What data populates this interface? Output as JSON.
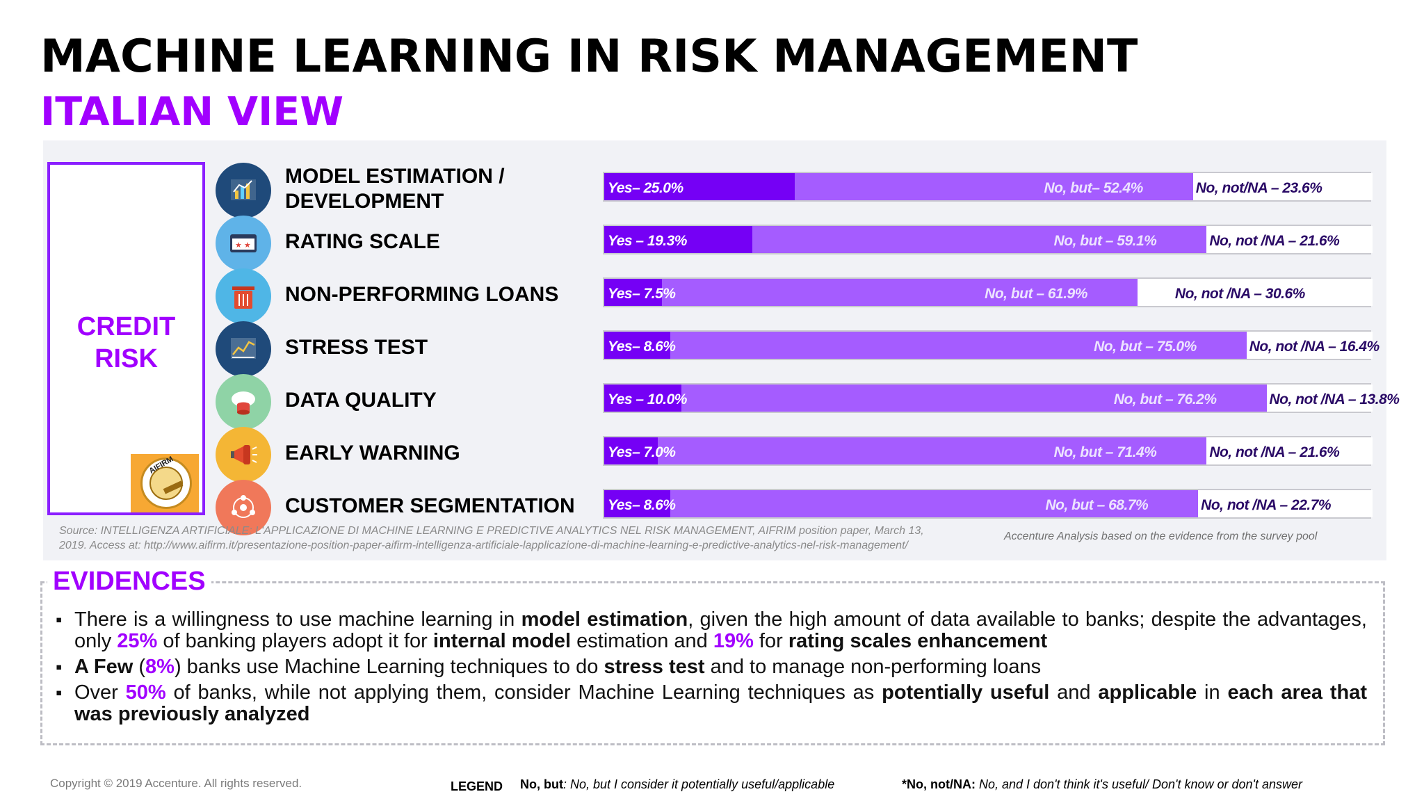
{
  "title": "MACHINE LEARNING IN RISK MANAGEMENT",
  "subtitle": "ITALIAN VIEW",
  "category_label": [
    "CREDIT",
    "RISK"
  ],
  "logo_text": "AIFIRM",
  "colors": {
    "accent": "#a100ff",
    "yes": "#7500f5",
    "no_but": "#a55cff",
    "no_not": "#ffffff"
  },
  "chart_data": {
    "type": "bar",
    "orientation": "horizontal",
    "stacked": true,
    "categories": [
      "MODEL ESTIMATION / DEVELOPMENT",
      "RATING SCALE",
      "NON-PERFORMING LOANS",
      "STRESS TEST",
      "DATA QUALITY",
      "EARLY WARNING",
      "CUSTOMER SEGMENTATION"
    ],
    "icons": [
      "chart-board-icon",
      "rating-stars-icon",
      "trash-bin-icon",
      "stress-graph-icon",
      "database-cloud-icon",
      "megaphone-icon",
      "network-user-icon"
    ],
    "icon_colors": [
      "#1f4a7a",
      "#5fb3e8",
      "#4fb6e6",
      "#1f4a7a",
      "#8fd3a6",
      "#f4b635",
      "#f0785a"
    ],
    "series": [
      {
        "name": "Yes",
        "values": [
          25.0,
          19.3,
          7.5,
          8.6,
          10.0,
          7.0,
          8.6
        ],
        "labels": [
          "Yes– 25.0%",
          "Yes  –  19.3%",
          "Yes– 7.5%",
          "Yes– 8.6%",
          "Yes – 10.0%",
          "Yes– 7.0%",
          "Yes– 8.6%"
        ]
      },
      {
        "name": "No, but",
        "values": [
          52.4,
          59.1,
          61.9,
          75.0,
          76.2,
          71.4,
          68.7
        ],
        "labels": [
          "No, but– 52.4%",
          "No, but – 59.1%",
          "No, but – 61.9%",
          "No, but – 75.0%",
          "No, but – 76.2%",
          "No, but – 71.4%",
          "No, but – 68.7%"
        ]
      },
      {
        "name": "No, not/NA",
        "values": [
          23.6,
          21.6,
          30.6,
          16.4,
          13.8,
          21.6,
          22.7
        ],
        "labels": [
          "No, not/NA – 23.6%",
          "No, not /NA – 21.6%",
          "No, not /NA – 30.6%",
          "No, not /NA –  16.4%",
          "No, not /NA – 13.8%",
          "No, not /NA – 21.6%",
          "No, not /NA – 22.7%"
        ]
      }
    ]
  },
  "source_text": "Source: INTELLIGENZA ARTIFICIALE: L'APPLICAZIONE DI MACHINE LEARNING E PREDICTIVE ANALYTICS NEL RISK MANAGEMENT, AIFRIM position paper, March 13, 2019. Access at:  http://www.aifirm.it/presentazione-position-paper-aifirm-intelligenza-artificiale-lapplicazione-di-machine-learning-e-predictive-analytics-nel-risk-management/",
  "analysis_note": "Accenture Analysis based on the evidence from the survey pool",
  "evidences": {
    "title": "EVIDENCES",
    "bullets": [
      [
        {
          "t": "There is a willingness to use machine learning in "
        },
        {
          "t": "model estimation",
          "s": "b"
        },
        {
          "t": ", given the high amount of data available to banks; despite the advantages, only "
        },
        {
          "t": "25%",
          "s": "p"
        },
        {
          "t": " of banking players adopt it for "
        },
        {
          "t": "internal model",
          "s": "b"
        },
        {
          "t": " estimation and "
        },
        {
          "t": "19%",
          "s": "p"
        },
        {
          "t": " for "
        },
        {
          "t": "rating scales enhancement",
          "s": "b"
        }
      ],
      [
        {
          "t": "A Few",
          "s": "b"
        },
        {
          "t": " ("
        },
        {
          "t": "8%",
          "s": "p"
        },
        {
          "t": ") banks use Machine Learning techniques to do "
        },
        {
          "t": "stress test",
          "s": "b"
        },
        {
          "t": " and to manage non-performing loans"
        }
      ],
      [
        {
          "t": "Over "
        },
        {
          "t": "50%",
          "s": "p"
        },
        {
          "t": " of banks, while not applying them, consider Machine Learning techniques as "
        },
        {
          "t": "potentially useful",
          "s": "b"
        },
        {
          "t": " and "
        },
        {
          "t": "applicable",
          "s": "b"
        },
        {
          "t": " in "
        },
        {
          "t": "each area that was previously analyzed",
          "s": "b"
        }
      ]
    ]
  },
  "footer": {
    "copyright": "Copyright © 2019 Accenture. All rights reserved.",
    "legend_title": "LEGEND",
    "legend_items": [
      {
        "key": "No, but",
        "text": ": No, but I consider it potentially useful/applicable"
      },
      {
        "key": "*No, not/NA:",
        "text": " No, and I don't think it's useful/ Don't know or don't answer"
      }
    ]
  }
}
